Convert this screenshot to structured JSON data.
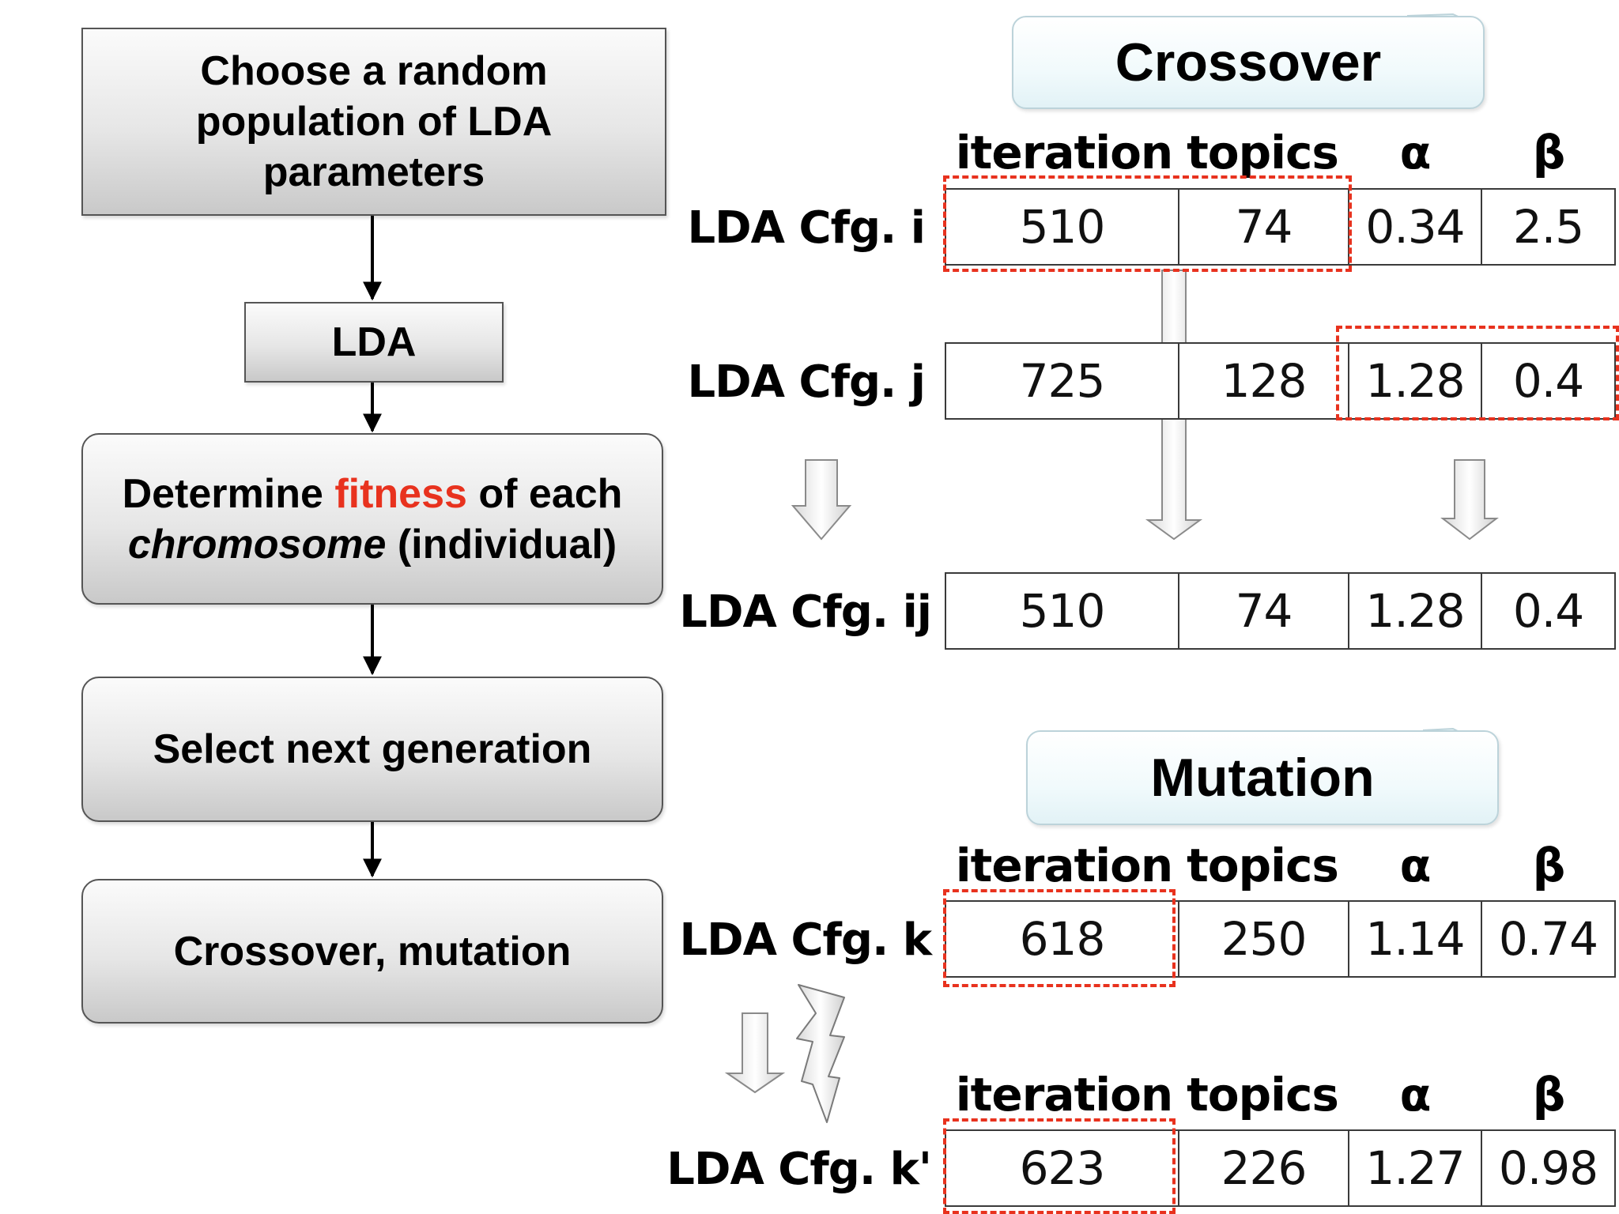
{
  "flowchart": {
    "step1": "Choose a random population of LDA parameters",
    "step2": "LDA",
    "step3": {
      "prefix": "Determine ",
      "highlight": "fitness",
      "suffix": " of each",
      "italic": "chromosome",
      "tail": " (individual)"
    },
    "step4": "Select next generation",
    "step5": "Crossover, mutation",
    "highlight_color": "#e8321e"
  },
  "crossover": {
    "title": "Crossover",
    "headers": [
      "iteration",
      "topics",
      "α",
      "β"
    ],
    "rows": [
      {
        "label": "LDA Cfg. i",
        "values": [
          "510",
          "74",
          "0.34",
          "2.5"
        ]
      },
      {
        "label": "LDA Cfg. j",
        "values": [
          "725",
          "128",
          "1.28",
          "0.4"
        ]
      },
      {
        "label": "LDA Cfg. ij",
        "values": [
          "510",
          "74",
          "1.28",
          "0.4"
        ]
      }
    ]
  },
  "mutation": {
    "title": "Mutation",
    "headers": [
      "iteration",
      "topics",
      "α",
      "β"
    ],
    "before": {
      "label": "LDA Cfg. k",
      "values": [
        "618",
        "250",
        "1.14",
        "0.74"
      ]
    },
    "after_headers": [
      "iteration",
      "topics",
      "α",
      "β"
    ],
    "after": {
      "label": "LDA Cfg. k'",
      "values": [
        "623",
        "226",
        "1.27",
        "0.98"
      ]
    }
  }
}
